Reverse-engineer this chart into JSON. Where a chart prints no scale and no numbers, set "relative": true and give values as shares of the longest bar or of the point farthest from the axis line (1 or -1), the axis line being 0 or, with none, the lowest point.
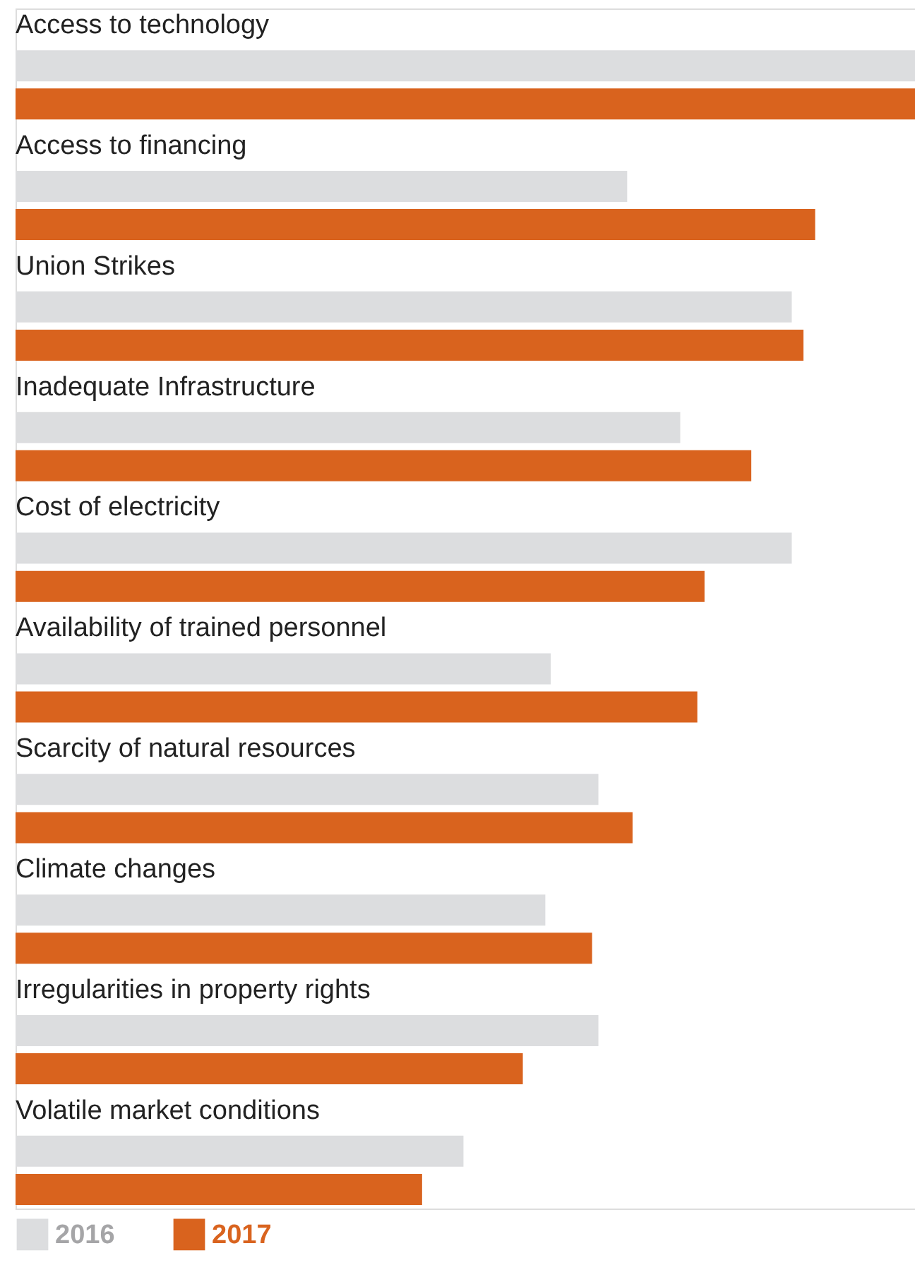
{
  "chart_data": {
    "type": "bar",
    "orientation": "horizontal",
    "relative": true,
    "legend": "bottom left",
    "categories": [
      "Access to technology",
      "Access to financing",
      "Union Strikes",
      "Inadequate Infrastructure",
      "Cost of electricity",
      "Availability of trained personnel",
      "Scarcity of natural resources",
      "Climate changes",
      "Irregularities in property rights",
      "Volatile market conditions"
    ],
    "series": [
      {
        "name": "2016",
        "color": "#dcdddf",
        "values": [
          1.0,
          0.68,
          0.863,
          0.739,
          0.863,
          0.595,
          0.648,
          0.589,
          0.648,
          0.498
        ]
      },
      {
        "name": "2017",
        "color": "#d9631e",
        "values": [
          1.0,
          0.889,
          0.876,
          0.818,
          0.766,
          0.758,
          0.686,
          0.641,
          0.564,
          0.452
        ]
      }
    ]
  }
}
